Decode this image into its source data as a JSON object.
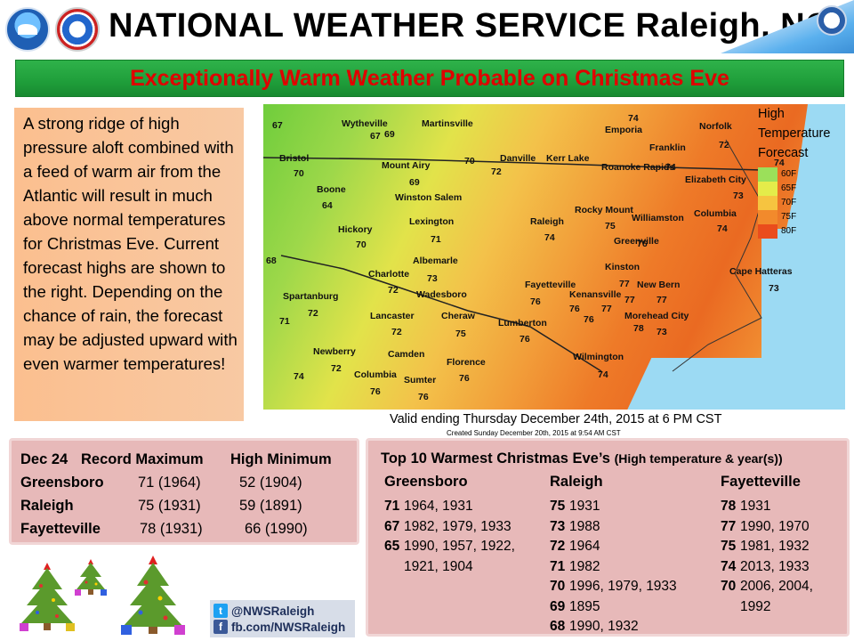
{
  "header": {
    "title": "NATIONAL WEATHER SERVICE Raleigh, NC"
  },
  "banner": {
    "text": "Exceptionally Warm Weather Probable on Christmas Eve"
  },
  "description": "A strong ridge of high pressure aloft combined with a feed of warm air from the Atlantic will result in much above normal temperatures for Christmas Eve. Current forecast highs are shown to the right. Depending on the chance of rain, the forecast may be adjusted upward with even warmer temperatures!",
  "map": {
    "legend_title": "High Temperature Forecast",
    "legend": [
      {
        "label": "60F",
        "color": "#9be05a"
      },
      {
        "label": "65F",
        "color": "#e4ec4a"
      },
      {
        "label": "70F",
        "color": "#f6c440"
      },
      {
        "label": "75F",
        "color": "#f28a2c"
      },
      {
        "label": "80F",
        "color": "#ea4c1c"
      }
    ],
    "cities": [
      {
        "name": "Wytheville",
        "value": "67"
      },
      {
        "name": "Martinsville",
        "value": "70"
      },
      {
        "name": "Danville",
        "value": "72"
      },
      {
        "name": "Emporia",
        "value": "74"
      },
      {
        "name": "Franklin",
        "value": ""
      },
      {
        "name": "Norfolk",
        "value": "72"
      },
      {
        "name": "Bristol",
        "value": "70"
      },
      {
        "name": "Mount Airy",
        "value": "69"
      },
      {
        "name": "Kerr Lake",
        "value": ""
      },
      {
        "name": "Roanoke Rapids",
        "value": "74"
      },
      {
        "name": "Elizabeth City",
        "value": "73"
      },
      {
        "name": "Boone",
        "value": "64"
      },
      {
        "name": "Winston Salem",
        "value": ""
      },
      {
        "name": "Lexington",
        "value": "71"
      },
      {
        "name": "Raleigh",
        "value": "74"
      },
      {
        "name": "Rocky Mount",
        "value": "75"
      },
      {
        "name": "Williamston",
        "value": ""
      },
      {
        "name": "Columbia",
        "value": "74"
      },
      {
        "name": "Hickory",
        "value": "70"
      },
      {
        "name": "Greenville",
        "value": "76"
      },
      {
        "name": "Albemarle",
        "value": "73"
      },
      {
        "name": "Charlotte",
        "value": "72"
      },
      {
        "name": "Kinston",
        "value": "77"
      },
      {
        "name": "Fayetteville",
        "value": "76"
      },
      {
        "name": "New Bern",
        "value": "77"
      },
      {
        "name": "Cape Hatteras",
        "value": "73"
      },
      {
        "name": "Spartanburg",
        "value": "72"
      },
      {
        "name": "Wadesboro",
        "value": ""
      },
      {
        "name": "Kenansville",
        "value": "76"
      },
      {
        "name": "Lancaster",
        "value": "72"
      },
      {
        "name": "Cheraw",
        "value": "75"
      },
      {
        "name": "Lumberton",
        "value": "76"
      },
      {
        "name": "Morehead City",
        "value": "73"
      },
      {
        "name": "Newberry",
        "value": "72"
      },
      {
        "name": "Camden",
        "value": ""
      },
      {
        "name": "Florence",
        "value": "76"
      },
      {
        "name": "Wilmington",
        "value": "74"
      },
      {
        "name": "Columbia",
        "value": "76"
      },
      {
        "name": "Sumter",
        "value": "76"
      }
    ],
    "extra_values": [
      "67",
      "68",
      "71",
      "74",
      "69",
      "76",
      "77",
      "77",
      "78",
      "74"
    ],
    "valid": "Valid ending Thursday December 24th, 2015 at 6 PM CST",
    "created": "Created Sunday December 20th, 2015 at 9:54 AM CST"
  },
  "records": {
    "head_date": "Dec 24",
    "head_max": "Record Maximum",
    "head_min": "High Minimum",
    "rows": [
      {
        "city": "Greensboro",
        "max": "71 (1964)",
        "min": "52 (1904)"
      },
      {
        "city": "Raleigh",
        "max": "75 (1931)",
        "min": "59 (1891)"
      },
      {
        "city": "Fayetteville",
        "max": "78 (1931)",
        "min": "66 (1990)"
      }
    ]
  },
  "top10": {
    "title": "Top 10 Warmest Christmas Eve’s",
    "subtitle": "(High temperature & year(s))",
    "columns": [
      {
        "city": "Greensboro",
        "entries": [
          {
            "temp": "71",
            "years": "1964, 1931"
          },
          {
            "temp": "67",
            "years": "1982, 1979, 1933"
          },
          {
            "temp": "65",
            "years": "1990, 1957, 1922, 1921, 1904"
          }
        ]
      },
      {
        "city": "Raleigh",
        "entries": [
          {
            "temp": "75",
            "years": "1931"
          },
          {
            "temp": "73",
            "years": "1988"
          },
          {
            "temp": "72",
            "years": "1964"
          },
          {
            "temp": "71",
            "years": "1982"
          },
          {
            "temp": "70",
            "years": "1996, 1979, 1933"
          },
          {
            "temp": "69",
            "years": "1895"
          },
          {
            "temp": "68",
            "years": "1990, 1932"
          }
        ]
      },
      {
        "city": "Fayetteville",
        "entries": [
          {
            "temp": "78",
            "years": "1931"
          },
          {
            "temp": "77",
            "years": "1990, 1970"
          },
          {
            "temp": "75",
            "years": "1981, 1932"
          },
          {
            "temp": "74",
            "years": "2013, 1933"
          },
          {
            "temp": "70",
            "years": "2006, 2004, 1992"
          }
        ]
      }
    ]
  },
  "social": {
    "twitter": "@NWSRaleigh",
    "facebook": "fb.com/NWSRaleigh"
  },
  "icons": [
    "noaa-logo",
    "nws-logo",
    "doc-seal",
    "christmas-tree-icon",
    "twitter-icon",
    "facebook-icon"
  ]
}
